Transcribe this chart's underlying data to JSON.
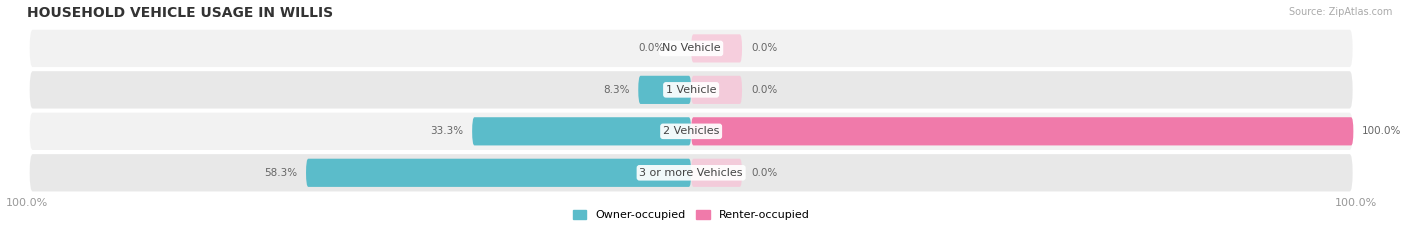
{
  "title": "HOUSEHOLD VEHICLE USAGE IN WILLIS",
  "source": "Source: ZipAtlas.com",
  "categories": [
    "No Vehicle",
    "1 Vehicle",
    "2 Vehicles",
    "3 or more Vehicles"
  ],
  "owner_values": [
    0.0,
    8.3,
    33.3,
    58.3
  ],
  "renter_values": [
    0.0,
    0.0,
    100.0,
    0.0
  ],
  "owner_color": "#5bbcca",
  "renter_color": "#f07aaa",
  "renter_color_light": "#f9c0d5",
  "background_color": "#ffffff",
  "row_bg_odd": "#f2f2f2",
  "row_bg_even": "#e8e8e8",
  "owner_label": "Owner-occupied",
  "renter_label": "Renter-occupied",
  "xlim": 100.0,
  "title_fontsize": 10,
  "label_fontsize": 8,
  "tick_fontsize": 8,
  "legend_fontsize": 8,
  "value_fontsize": 7.5
}
